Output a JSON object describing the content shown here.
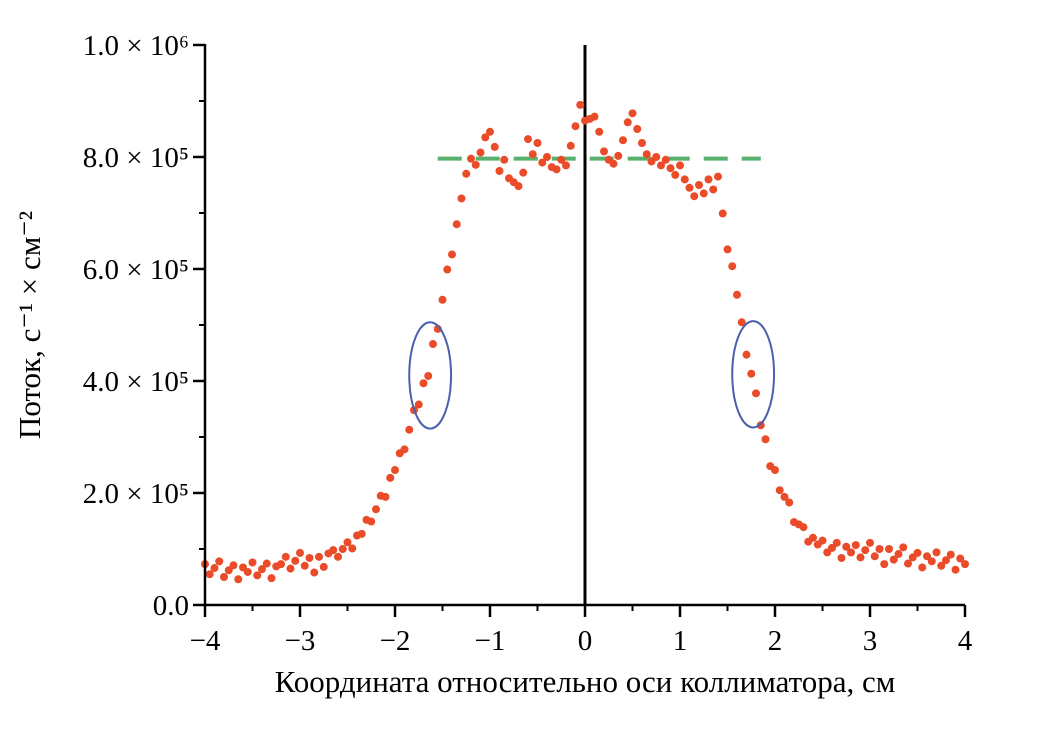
{
  "chart_data": {
    "type": "scatter",
    "title": "",
    "xlabel": "Координата относительно оси коллиматора, см",
    "ylabel": "Поток, с⁻¹ × см⁻²",
    "xlim": [
      -4,
      4
    ],
    "ylim": [
      0,
      1000000
    ],
    "x_ticks": [
      -4,
      -3,
      -2,
      -1,
      0,
      1,
      2,
      3,
      4
    ],
    "x_tick_labels": [
      "−4",
      "−3",
      "−2",
      "−1",
      "0",
      "1",
      "2",
      "3",
      "4"
    ],
    "x_minor_step": 0.5,
    "y_ticks": [
      0,
      200000,
      400000,
      600000,
      800000,
      1000000
    ],
    "y_tick_labels": [
      "0.0",
      "2.0 × 10⁵",
      "4.0 × 10⁵",
      "6.0 × 10⁵",
      "8.0 × 10⁵",
      "1.0 × 10⁶"
    ],
    "y_minor_step": 100000,
    "grid": false,
    "legend_position": "none",
    "background": "#ffffff",
    "marker_color": "#ea4b28",
    "reference_line": {
      "y": 797000,
      "x_start": -1.55,
      "x_end": 1.85,
      "color": "#57b16d",
      "style": "dashed"
    },
    "zero_line": {
      "x": 0,
      "color": "#000000"
    },
    "ellipses": [
      {
        "cx": -1.63,
        "cy": 410000,
        "rx": 0.22,
        "ry": 95000,
        "color": "#4a5fae"
      },
      {
        "cx": 1.77,
        "cy": 412000,
        "rx": 0.22,
        "ry": 95000,
        "color": "#4a5fae"
      }
    ],
    "series": [
      {
        "name": "",
        "marker": "circle",
        "y_scale": 100000,
        "points": [
          [
            -4.0,
            0.73
          ],
          [
            -3.95,
            0.55
          ],
          [
            -3.9,
            0.66
          ],
          [
            -3.85,
            0.78
          ],
          [
            -3.8,
            0.5
          ],
          [
            -3.75,
            0.62
          ],
          [
            -3.7,
            0.71
          ],
          [
            -3.65,
            0.46
          ],
          [
            -3.6,
            0.67
          ],
          [
            -3.55,
            0.59
          ],
          [
            -3.5,
            0.76
          ],
          [
            -3.45,
            0.53
          ],
          [
            -3.4,
            0.64
          ],
          [
            -3.35,
            0.74
          ],
          [
            -3.3,
            0.48
          ],
          [
            -3.25,
            0.69
          ],
          [
            -3.2,
            0.73
          ],
          [
            -3.15,
            0.86
          ],
          [
            -3.1,
            0.65
          ],
          [
            -3.05,
            0.79
          ],
          [
            -3.0,
            0.93
          ],
          [
            -2.95,
            0.7
          ],
          [
            -2.9,
            0.84
          ],
          [
            -2.85,
            0.58
          ],
          [
            -2.8,
            0.86
          ],
          [
            -2.75,
            0.68
          ],
          [
            -2.7,
            0.92
          ],
          [
            -2.65,
            0.98
          ],
          [
            -2.6,
            0.86
          ],
          [
            -2.55,
            1.0
          ],
          [
            -2.5,
            1.12
          ],
          [
            -2.45,
            1.01
          ],
          [
            -2.4,
            1.24
          ],
          [
            -2.35,
            1.27
          ],
          [
            -2.3,
            1.52
          ],
          [
            -2.25,
            1.49
          ],
          [
            -2.2,
            1.71
          ],
          [
            -2.15,
            1.95
          ],
          [
            -2.1,
            1.93
          ],
          [
            -2.05,
            2.27
          ],
          [
            -2.0,
            2.41
          ],
          [
            -1.95,
            2.71
          ],
          [
            -1.9,
            2.78
          ],
          [
            -1.85,
            3.13
          ],
          [
            -1.8,
            3.48
          ],
          [
            -1.75,
            3.58
          ],
          [
            -1.7,
            3.96
          ],
          [
            -1.65,
            4.09
          ],
          [
            -1.6,
            4.66
          ],
          [
            -1.55,
            4.93
          ],
          [
            -1.5,
            5.45
          ],
          [
            -1.45,
            5.99
          ],
          [
            -1.4,
            6.26
          ],
          [
            -1.35,
            6.8
          ],
          [
            -1.3,
            7.26
          ],
          [
            -1.25,
            7.7
          ],
          [
            -1.2,
            7.97
          ],
          [
            -1.15,
            7.86
          ],
          [
            -1.1,
            8.08
          ],
          [
            -1.05,
            8.35
          ],
          [
            -1.0,
            8.45
          ],
          [
            -0.95,
            8.18
          ],
          [
            -0.9,
            7.75
          ],
          [
            -0.85,
            7.95
          ],
          [
            -0.8,
            7.62
          ],
          [
            -0.75,
            7.55
          ],
          [
            -0.7,
            7.48
          ],
          [
            -0.65,
            7.72
          ],
          [
            -0.6,
            8.32
          ],
          [
            -0.55,
            8.05
          ],
          [
            -0.5,
            8.25
          ],
          [
            -0.45,
            7.9
          ],
          [
            -0.4,
            8.0
          ],
          [
            -0.35,
            7.82
          ],
          [
            -0.3,
            7.78
          ],
          [
            -0.25,
            7.95
          ],
          [
            -0.2,
            7.85
          ],
          [
            -0.15,
            8.2
          ],
          [
            -0.1,
            8.55
          ],
          [
            -0.05,
            8.93
          ],
          [
            0.0,
            8.65
          ],
          [
            0.05,
            8.68
          ],
          [
            0.1,
            8.72
          ],
          [
            0.15,
            8.45
          ],
          [
            0.2,
            8.1
          ],
          [
            0.25,
            7.95
          ],
          [
            0.3,
            7.88
          ],
          [
            0.35,
            8.02
          ],
          [
            0.4,
            8.3
          ],
          [
            0.45,
            8.62
          ],
          [
            0.5,
            8.78
          ],
          [
            0.55,
            8.5
          ],
          [
            0.6,
            8.25
          ],
          [
            0.65,
            8.05
          ],
          [
            0.7,
            7.92
          ],
          [
            0.75,
            8.0
          ],
          [
            0.8,
            7.85
          ],
          [
            0.85,
            7.95
          ],
          [
            0.9,
            7.8
          ],
          [
            0.95,
            7.68
          ],
          [
            1.0,
            7.85
          ],
          [
            1.05,
            7.6
          ],
          [
            1.1,
            7.45
          ],
          [
            1.15,
            7.3
          ],
          [
            1.2,
            7.5
          ],
          [
            1.25,
            7.35
          ],
          [
            1.3,
            7.6
          ],
          [
            1.35,
            7.42
          ],
          [
            1.4,
            7.65
          ],
          [
            1.45,
            6.99
          ],
          [
            1.5,
            6.35
          ],
          [
            1.55,
            6.05
          ],
          [
            1.6,
            5.54
          ],
          [
            1.65,
            5.05
          ],
          [
            1.7,
            4.47
          ],
          [
            1.75,
            4.13
          ],
          [
            1.8,
            3.78
          ],
          [
            1.85,
            3.21
          ],
          [
            1.9,
            2.96
          ],
          [
            1.95,
            2.48
          ],
          [
            2.0,
            2.41
          ],
          [
            2.05,
            2.05
          ],
          [
            2.1,
            1.93
          ],
          [
            2.15,
            1.83
          ],
          [
            2.2,
            1.48
          ],
          [
            2.25,
            1.44
          ],
          [
            2.3,
            1.39
          ],
          [
            2.35,
            1.13
          ],
          [
            2.4,
            1.2
          ],
          [
            2.45,
            1.08
          ],
          [
            2.5,
            1.15
          ],
          [
            2.55,
            0.94
          ],
          [
            2.6,
            1.02
          ],
          [
            2.65,
            1.11
          ],
          [
            2.7,
            0.84
          ],
          [
            2.75,
            1.04
          ],
          [
            2.8,
            0.94
          ],
          [
            2.85,
            1.07
          ],
          [
            2.9,
            0.85
          ],
          [
            2.95,
            0.98
          ],
          [
            3.0,
            1.11
          ],
          [
            3.05,
            0.87
          ],
          [
            3.1,
            1.0
          ],
          [
            3.15,
            0.73
          ],
          [
            3.2,
            1.0
          ],
          [
            3.25,
            0.81
          ],
          [
            3.3,
            0.91
          ],
          [
            3.35,
            1.03
          ],
          [
            3.4,
            0.74
          ],
          [
            3.45,
            0.85
          ],
          [
            3.5,
            0.93
          ],
          [
            3.55,
            0.67
          ],
          [
            3.6,
            0.87
          ],
          [
            3.65,
            0.78
          ],
          [
            3.7,
            0.94
          ],
          [
            3.75,
            0.7
          ],
          [
            3.8,
            0.8
          ],
          [
            3.85,
            0.9
          ],
          [
            3.9,
            0.63
          ],
          [
            3.95,
            0.83
          ],
          [
            4.0,
            0.73
          ]
        ]
      }
    ]
  }
}
